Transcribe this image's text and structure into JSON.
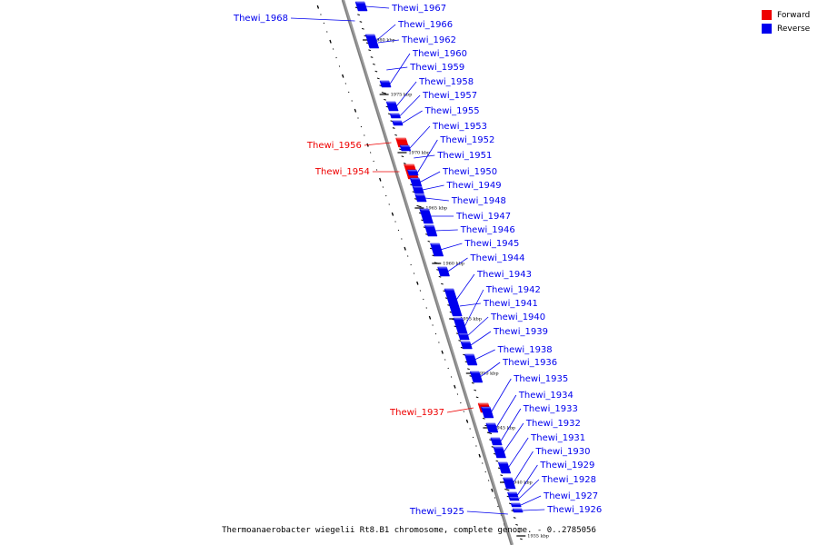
{
  "legend": {
    "forward_label": "Forward",
    "reverse_label": "Reverse",
    "forward_color": "#ee0000",
    "reverse_color": "#0000ee"
  },
  "caption": "Thermoanaerobacter wiegelii Rt8.B1 chromosome, complete genome. - 0..2785056",
  "ticks": [
    "1980 kbp",
    "1975 kbp",
    "1970 kbp",
    "1965 kbp",
    "1960 kbp",
    "1955 kbp",
    "1950 kbp",
    "1945 kbp",
    "1940 kbp",
    "1935 kbp"
  ],
  "genes": [
    {
      "name": "Thewi_1968",
      "strand": "reverse",
      "side": "left"
    },
    {
      "name": "Thewi_1967",
      "strand": "reverse",
      "side": "right"
    },
    {
      "name": "Thewi_1966",
      "strand": "reverse",
      "side": "right"
    },
    {
      "name": "Thewi_1962",
      "strand": "reverse",
      "side": "right"
    },
    {
      "name": "Thewi_1960",
      "strand": "reverse",
      "side": "right"
    },
    {
      "name": "Thewi_1959",
      "strand": "reverse",
      "side": "right"
    },
    {
      "name": "Thewi_1958",
      "strand": "reverse",
      "side": "right"
    },
    {
      "name": "Thewi_1957",
      "strand": "reverse",
      "side": "right"
    },
    {
      "name": "Thewi_1956",
      "strand": "forward",
      "side": "left"
    },
    {
      "name": "Thewi_1955",
      "strand": "reverse",
      "side": "right"
    },
    {
      "name": "Thewi_1954",
      "strand": "forward",
      "side": "left"
    },
    {
      "name": "Thewi_1953",
      "strand": "reverse",
      "side": "right"
    },
    {
      "name": "Thewi_1952",
      "strand": "reverse",
      "side": "right"
    },
    {
      "name": "Thewi_1951",
      "strand": "reverse",
      "side": "right"
    },
    {
      "name": "Thewi_1950",
      "strand": "reverse",
      "side": "right"
    },
    {
      "name": "Thewi_1949",
      "strand": "reverse",
      "side": "right"
    },
    {
      "name": "Thewi_1948",
      "strand": "reverse",
      "side": "right"
    },
    {
      "name": "Thewi_1947",
      "strand": "reverse",
      "side": "right"
    },
    {
      "name": "Thewi_1946",
      "strand": "reverse",
      "side": "right"
    },
    {
      "name": "Thewi_1945",
      "strand": "reverse",
      "side": "right"
    },
    {
      "name": "Thewi_1944",
      "strand": "reverse",
      "side": "right"
    },
    {
      "name": "Thewi_1943",
      "strand": "reverse",
      "side": "right"
    },
    {
      "name": "Thewi_1942",
      "strand": "reverse",
      "side": "right"
    },
    {
      "name": "Thewi_1941",
      "strand": "reverse",
      "side": "right"
    },
    {
      "name": "Thewi_1940",
      "strand": "reverse",
      "side": "right"
    },
    {
      "name": "Thewi_1939",
      "strand": "reverse",
      "side": "right"
    },
    {
      "name": "Thewi_1938",
      "strand": "reverse",
      "side": "right"
    },
    {
      "name": "Thewi_1937",
      "strand": "forward",
      "side": "left"
    },
    {
      "name": "Thewi_1936",
      "strand": "reverse",
      "side": "right"
    },
    {
      "name": "Thewi_1935",
      "strand": "reverse",
      "side": "right"
    },
    {
      "name": "Thewi_1934",
      "strand": "reverse",
      "side": "right"
    },
    {
      "name": "Thewi_1933",
      "strand": "reverse",
      "side": "right"
    },
    {
      "name": "Thewi_1932",
      "strand": "reverse",
      "side": "right"
    },
    {
      "name": "Thewi_1931",
      "strand": "reverse",
      "side": "right"
    },
    {
      "name": "Thewi_1930",
      "strand": "reverse",
      "side": "right"
    },
    {
      "name": "Thewi_1929",
      "strand": "reverse",
      "side": "right"
    },
    {
      "name": "Thewi_1928",
      "strand": "reverse",
      "side": "right"
    },
    {
      "name": "Thewi_1927",
      "strand": "reverse",
      "side": "right"
    },
    {
      "name": "Thewi_1926",
      "strand": "reverse",
      "side": "right"
    },
    {
      "name": "Thewi_1925",
      "strand": "reverse",
      "side": "left"
    }
  ]
}
